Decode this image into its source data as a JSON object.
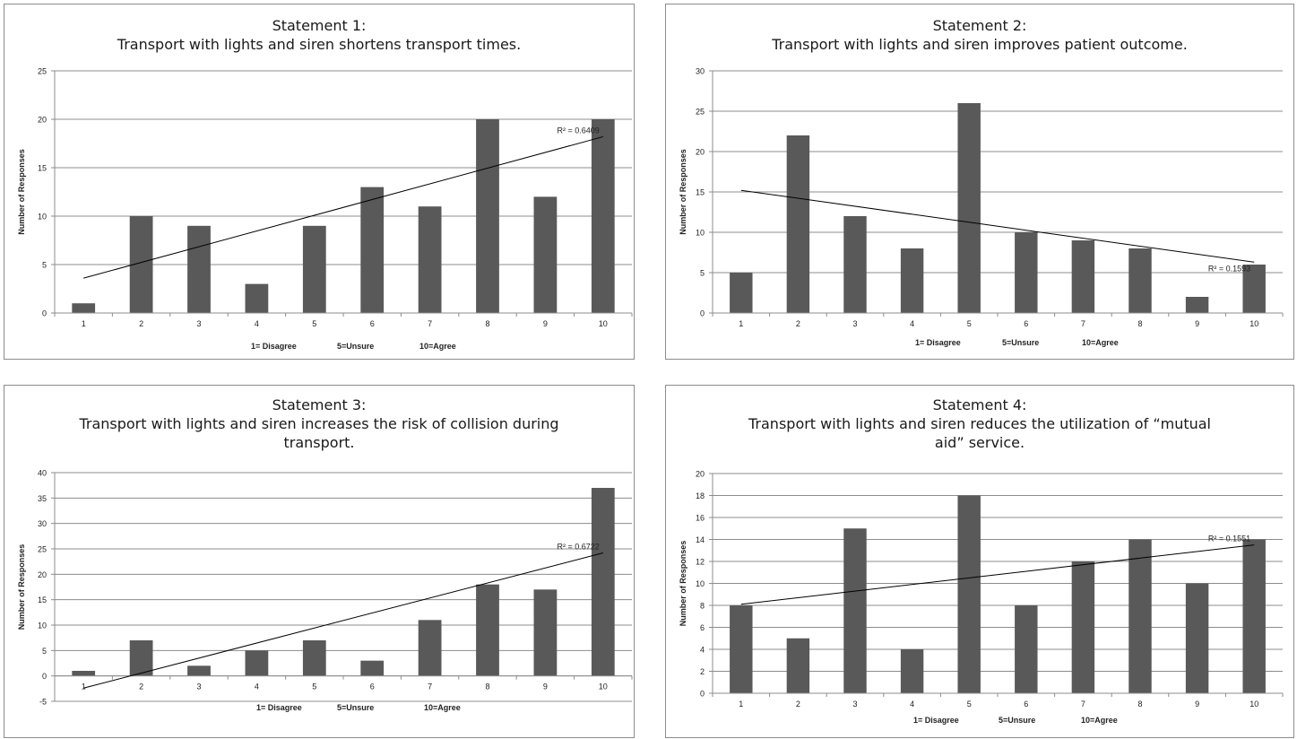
{
  "common": {
    "ylabel": "Number of Responses",
    "xnote": [
      "1= Disagree",
      "5=Unsure",
      "10=Agree"
    ],
    "bar_color": "#595959"
  },
  "chart_data": [
    {
      "type": "bar",
      "title_line1": "Statement 1:",
      "title_line2": "Transport with lights and siren shortens transport times.",
      "title_line3": "",
      "categories": [
        "1",
        "2",
        "3",
        "4",
        "5",
        "6",
        "7",
        "8",
        "9",
        "10"
      ],
      "values": [
        1,
        10,
        9,
        3,
        9,
        13,
        11,
        20,
        12,
        20
      ],
      "ylabel": "Number of Responses",
      "ylim": [
        0,
        25
      ],
      "yticks": [
        0,
        5,
        10,
        15,
        20,
        25
      ],
      "trendline": {
        "start": 3.6,
        "end": 18.2,
        "label": "R² = 0.6409"
      },
      "grid": true
    },
    {
      "type": "bar",
      "title_line1": "Statement 2:",
      "title_line2": "Transport with lights and siren improves patient outcome.",
      "title_line3": "",
      "categories": [
        "1",
        "2",
        "3",
        "4",
        "5",
        "6",
        "7",
        "8",
        "9",
        "10"
      ],
      "values": [
        5,
        22,
        12,
        8,
        26,
        10,
        9,
        8,
        2,
        6
      ],
      "ylabel": "Number of Responses",
      "ylim": [
        0,
        30
      ],
      "yticks": [
        0,
        5,
        10,
        15,
        20,
        25,
        30
      ],
      "trendline": {
        "start": 15.2,
        "end": 6.3,
        "label": "R² = 0.1593"
      },
      "grid": true
    },
    {
      "type": "bar",
      "title_line1": "Statement 3:",
      "title_line2": "Transport with lights and siren increases the risk of collision during",
      "title_line3": "transport.",
      "categories": [
        "1",
        "2",
        "3",
        "4",
        "5",
        "6",
        "7",
        "8",
        "9",
        "10"
      ],
      "values": [
        1,
        7,
        2,
        5,
        7,
        3,
        11,
        18,
        17,
        37
      ],
      "ylabel": "Number of Responses",
      "ylim": [
        -5,
        40
      ],
      "yticks": [
        -5,
        0,
        5,
        10,
        15,
        20,
        25,
        30,
        35,
        40
      ],
      "trendline": {
        "start": -2.4,
        "end": 24.2,
        "label": "R² = 0.6722"
      },
      "grid": true
    },
    {
      "type": "bar",
      "title_line1": "Statement 4:",
      "title_line2": "Transport with lights and siren reduces the utilization of “mutual",
      "title_line3": "aid” service.",
      "categories": [
        "1",
        "2",
        "3",
        "4",
        "5",
        "6",
        "7",
        "8",
        "9",
        "10"
      ],
      "values": [
        8,
        5,
        15,
        4,
        18,
        8,
        12,
        14,
        10,
        14
      ],
      "ylabel": "Number of Responses",
      "ylim": [
        0,
        20
      ],
      "yticks": [
        0,
        2,
        4,
        6,
        8,
        10,
        12,
        14,
        16,
        18,
        20
      ],
      "trendline": {
        "start": 8.1,
        "end": 13.5,
        "label": "R² = 0.1551"
      },
      "grid": true
    }
  ]
}
